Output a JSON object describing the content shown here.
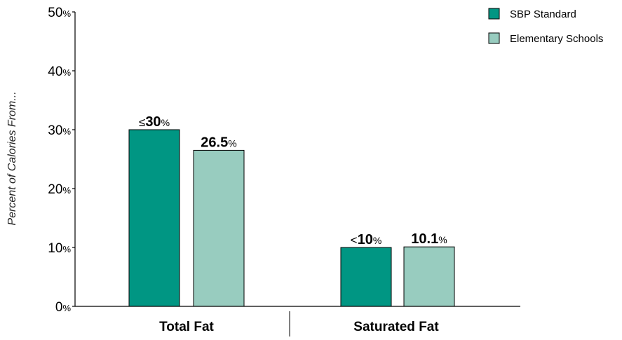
{
  "chart_data": {
    "type": "bar",
    "ylabel": "Percent of Calories From...",
    "ylim": [
      0,
      50
    ],
    "yticks": [
      0,
      10,
      20,
      30,
      40,
      50
    ],
    "ytick_suffix": "%",
    "categories": [
      "Total Fat",
      "Saturated Fat"
    ],
    "series": [
      {
        "name": "SBP Standard",
        "color": "#009683",
        "values": [
          30,
          10
        ],
        "labels": [
          {
            "prefix": "≤",
            "num": "30",
            "suffix": "%"
          },
          {
            "prefix": "<",
            "num": "10",
            "suffix": "%"
          }
        ]
      },
      {
        "name": "Elementary Schools",
        "color": "#98ccbf",
        "values": [
          26.5,
          10.1
        ],
        "labels": [
          {
            "prefix": "",
            "num": "26.5",
            "suffix": "%"
          },
          {
            "prefix": "",
            "num": "10.1",
            "suffix": "%"
          }
        ]
      }
    ],
    "legend": "top-right",
    "grid": false
  }
}
